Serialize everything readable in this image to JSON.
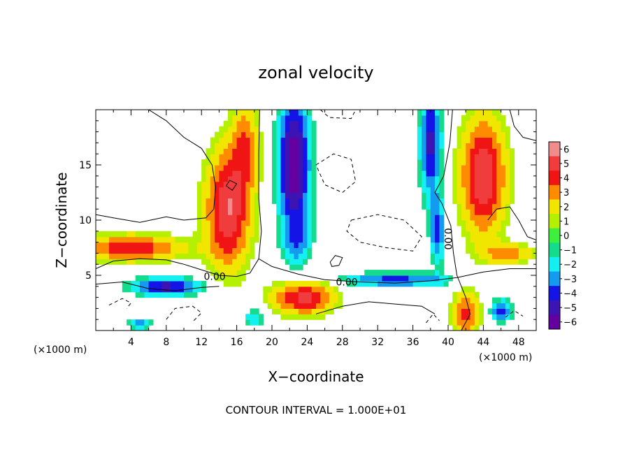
{
  "chart_data": {
    "type": "heatmap",
    "title": "zonal velocity",
    "xlabel": "X−coordinate",
    "ylabel": "Z−coordinate",
    "x_unit_left": "(×1000 m)",
    "x_unit_right": "(×1000 m)",
    "xlim": [
      0,
      50
    ],
    "ylim": [
      0,
      20
    ],
    "x_ticks": [
      4,
      8,
      12,
      16,
      20,
      24,
      28,
      32,
      36,
      40,
      44,
      48
    ],
    "x_tick_labels": [
      "4",
      "8",
      "12",
      "16",
      "20",
      "24",
      "28",
      "32",
      "36",
      "40",
      "44",
      "48"
    ],
    "y_ticks": [
      5,
      10,
      15
    ],
    "y_tick_labels": [
      "5",
      "10",
      "15"
    ],
    "colorbar": {
      "levels": [
        6,
        5,
        4,
        3,
        2,
        1,
        0,
        -1,
        -2,
        -3,
        -4,
        -5,
        -6
      ],
      "labels": [
        "6",
        "5",
        "4",
        "3",
        "2",
        "1",
        "0",
        "−1",
        "−2",
        "−3",
        "−4",
        "−5",
        "−6"
      ],
      "colors": [
        "#f08c8c",
        "#f03c3c",
        "#f01414",
        "#ff8c00",
        "#f0e600",
        "#b4f000",
        "#3cf03c",
        "#14dc8c",
        "#14f0f0",
        "#149bf0",
        "#1414e6",
        "#3c14b4",
        "#6400a0"
      ]
    },
    "contour_labels": [
      {
        "text": "0.00",
        "x": 13.5,
        "y": 4.9
      },
      {
        "text": "0.00",
        "x": 28.5,
        "y": 4.4
      },
      {
        "text": "0.00",
        "x": 40.0,
        "y": 8.3
      }
    ],
    "footer": "CONTOUR INTERVAL = 1.000E+01"
  }
}
